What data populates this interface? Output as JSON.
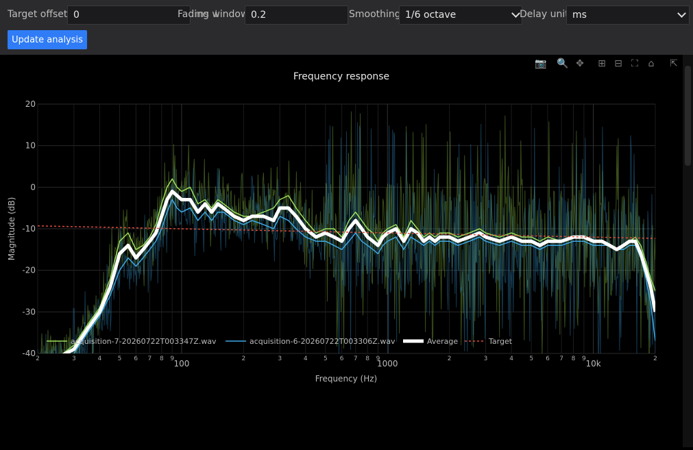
{
  "controls": {
    "target_offset_label": "Target offset",
    "target_offset_value": "0",
    "fading_window_label": "Fading window",
    "fading_window_overlap": "ms ↓",
    "fading_window_value": "0.2",
    "smoothing_label": "Smoothing",
    "smoothing_value": "1/6 octave",
    "delay_unit_label": "Delay unit",
    "delay_unit_value": "ms",
    "update_button": "Update analysis"
  },
  "modebar": {
    "icons": [
      "camera-icon",
      "zoom-icon",
      "pan-icon",
      "zoom-in-icon",
      "zoom-out-icon",
      "autoscale-icon",
      "home-icon",
      "expand-icon"
    ]
  },
  "chart_data": {
    "type": "line",
    "title": "Frequency response",
    "xlabel": "Frequency (Hz)",
    "ylabel": "Magnitude (dB)",
    "x_scale": "log",
    "xlim": [
      20,
      20000
    ],
    "ylim": [
      -40,
      20
    ],
    "yticks": [
      20,
      10,
      0,
      -10,
      -20,
      -30,
      -40
    ],
    "xtick_major": [
      {
        "v": 100,
        "t": "100"
      },
      {
        "v": 1000,
        "t": "1000"
      },
      {
        "v": 10000,
        "t": "10k"
      }
    ],
    "xtick_minor": [
      {
        "v": 20,
        "t": "2"
      },
      {
        "v": 30,
        "t": "3"
      },
      {
        "v": 40,
        "t": "4"
      },
      {
        "v": 50,
        "t": "5"
      },
      {
        "v": 60,
        "t": "6"
      },
      {
        "v": 70,
        "t": "7"
      },
      {
        "v": 80,
        "t": "8"
      },
      {
        "v": 90,
        "t": "9"
      },
      {
        "v": 200,
        "t": "2"
      },
      {
        "v": 300,
        "t": "3"
      },
      {
        "v": 400,
        "t": "4"
      },
      {
        "v": 500,
        "t": "5"
      },
      {
        "v": 600,
        "t": "6"
      },
      {
        "v": 700,
        "t": "7"
      },
      {
        "v": 800,
        "t": "8"
      },
      {
        "v": 900,
        "t": "9"
      },
      {
        "v": 2000,
        "t": "2"
      },
      {
        "v": 3000,
        "t": "3"
      },
      {
        "v": 4000,
        "t": "4"
      },
      {
        "v": 5000,
        "t": "5"
      },
      {
        "v": 6000,
        "t": "6"
      },
      {
        "v": 7000,
        "t": "7"
      },
      {
        "v": 8000,
        "t": "8"
      },
      {
        "v": 9000,
        "t": "9"
      },
      {
        "v": 20000,
        "t": "2"
      }
    ],
    "grid": true,
    "legend_position": "bottom-left",
    "series": [
      {
        "name": "acquisition-7-20260722T003347Z.wav",
        "color": "#9ee05a",
        "width": 1.5,
        "x": [
          20,
          25,
          30,
          35,
          40,
          45,
          50,
          55,
          60,
          65,
          70,
          75,
          80,
          85,
          90,
          95,
          100,
          110,
          120,
          130,
          140,
          150,
          160,
          180,
          200,
          220,
          250,
          280,
          300,
          330,
          360,
          400,
          450,
          500,
          550,
          600,
          650,
          700,
          750,
          800,
          850,
          900,
          950,
          1000,
          1100,
          1200,
          1300,
          1400,
          1500,
          1600,
          1700,
          1800,
          2000,
          2200,
          2500,
          2800,
          3000,
          3500,
          4000,
          4500,
          5000,
          5500,
          6000,
          7000,
          8000,
          9000,
          10000,
          11000,
          12000,
          13000,
          14000,
          15000,
          16000,
          17000,
          18000,
          19000,
          20000
        ],
        "y": [
          -42,
          -41,
          -38,
          -33,
          -29,
          -22,
          -13,
          -11,
          -15,
          -14,
          -12,
          -9,
          -4,
          0,
          2,
          0,
          -1,
          0,
          -4,
          -3,
          -5,
          -3,
          -4,
          -6,
          -7,
          -7,
          -6,
          -5,
          -3,
          -2,
          -5,
          -8,
          -11,
          -10,
          -10,
          -12,
          -8,
          -6,
          -8,
          -10,
          -11,
          -13,
          -11,
          -10,
          -9,
          -12,
          -8,
          -10,
          -12,
          -11,
          -12,
          -11,
          -11,
          -12,
          -11,
          -10,
          -11,
          -12,
          -11,
          -12,
          -12,
          -13,
          -12,
          -13,
          -12,
          -12,
          -13,
          -13,
          -14,
          -15,
          -14,
          -13,
          -12,
          -14,
          -18,
          -22,
          -25
        ]
      },
      {
        "name": "acquisition-6-20260722T003306Z.wav",
        "color": "#3fa9e6",
        "width": 1.5,
        "x": [
          20,
          25,
          30,
          35,
          40,
          45,
          50,
          55,
          60,
          65,
          70,
          75,
          80,
          85,
          90,
          95,
          100,
          110,
          120,
          130,
          140,
          150,
          160,
          180,
          200,
          220,
          250,
          280,
          300,
          330,
          360,
          400,
          450,
          500,
          550,
          600,
          650,
          700,
          750,
          800,
          850,
          900,
          950,
          1000,
          1100,
          1200,
          1300,
          1400,
          1500,
          1600,
          1700,
          1800,
          2000,
          2200,
          2500,
          2800,
          3000,
          3500,
          4000,
          4500,
          5000,
          5500,
          6000,
          7000,
          8000,
          9000,
          10000,
          11000,
          12000,
          13000,
          14000,
          15000,
          16000,
          17000,
          18000,
          19000,
          20000
        ],
        "y": [
          -43,
          -42,
          -40,
          -35,
          -31,
          -26,
          -20,
          -17,
          -19,
          -17,
          -15,
          -13,
          -10,
          -6,
          -3,
          -5,
          -6,
          -5,
          -8,
          -6,
          -8,
          -6,
          -6,
          -8,
          -9,
          -8,
          -9,
          -10,
          -7,
          -8,
          -10,
          -12,
          -13,
          -13,
          -14,
          -15,
          -13,
          -11,
          -13,
          -14,
          -15,
          -16,
          -14,
          -13,
          -12,
          -15,
          -12,
          -13,
          -14,
          -13,
          -14,
          -13,
          -13,
          -14,
          -13,
          -12,
          -13,
          -14,
          -13,
          -14,
          -14,
          -15,
          -14,
          -14,
          -13,
          -13,
          -14,
          -14,
          -14,
          -15,
          -15,
          -14,
          -14,
          -17,
          -22,
          -28,
          -37
        ]
      },
      {
        "name": "Average",
        "color": "#ffffff",
        "width": 5,
        "x": [
          20,
          25,
          30,
          35,
          40,
          45,
          50,
          55,
          60,
          65,
          70,
          75,
          80,
          85,
          90,
          95,
          100,
          110,
          120,
          130,
          140,
          150,
          160,
          180,
          200,
          220,
          250,
          280,
          300,
          330,
          360,
          400,
          450,
          500,
          550,
          600,
          650,
          700,
          750,
          800,
          850,
          900,
          950,
          1000,
          1100,
          1200,
          1300,
          1400,
          1500,
          1600,
          1700,
          1800,
          2000,
          2200,
          2500,
          2800,
          3000,
          3500,
          4000,
          4500,
          5000,
          5500,
          6000,
          7000,
          8000,
          9000,
          10000,
          11000,
          12000,
          13000,
          14000,
          15000,
          16000,
          17000,
          18000,
          19000,
          20000
        ],
        "y": [
          -42,
          -41,
          -39,
          -34,
          -30,
          -24,
          -16,
          -14,
          -17,
          -15,
          -13,
          -11,
          -7,
          -3,
          -1,
          -2,
          -3,
          -3,
          -6,
          -4,
          -6,
          -4,
          -5,
          -7,
          -8,
          -7,
          -7,
          -8,
          -5,
          -5,
          -7,
          -10,
          -12,
          -11,
          -12,
          -13,
          -10,
          -8,
          -10,
          -12,
          -13,
          -14,
          -12,
          -11,
          -10,
          -13,
          -10,
          -11,
          -13,
          -12,
          -13,
          -12,
          -12,
          -13,
          -12,
          -11,
          -12,
          -13,
          -12,
          -13,
          -13,
          -14,
          -13,
          -13,
          -12,
          -12,
          -13,
          -13,
          -14,
          -15,
          -14,
          -13,
          -13,
          -16,
          -20,
          -24,
          -30
        ]
      },
      {
        "name": "Target",
        "color": "#e04a3f",
        "width": 1.5,
        "dash": "3,3",
        "x": [
          20,
          20000
        ],
        "y": [
          -9.3,
          -12.3
        ]
      }
    ]
  }
}
